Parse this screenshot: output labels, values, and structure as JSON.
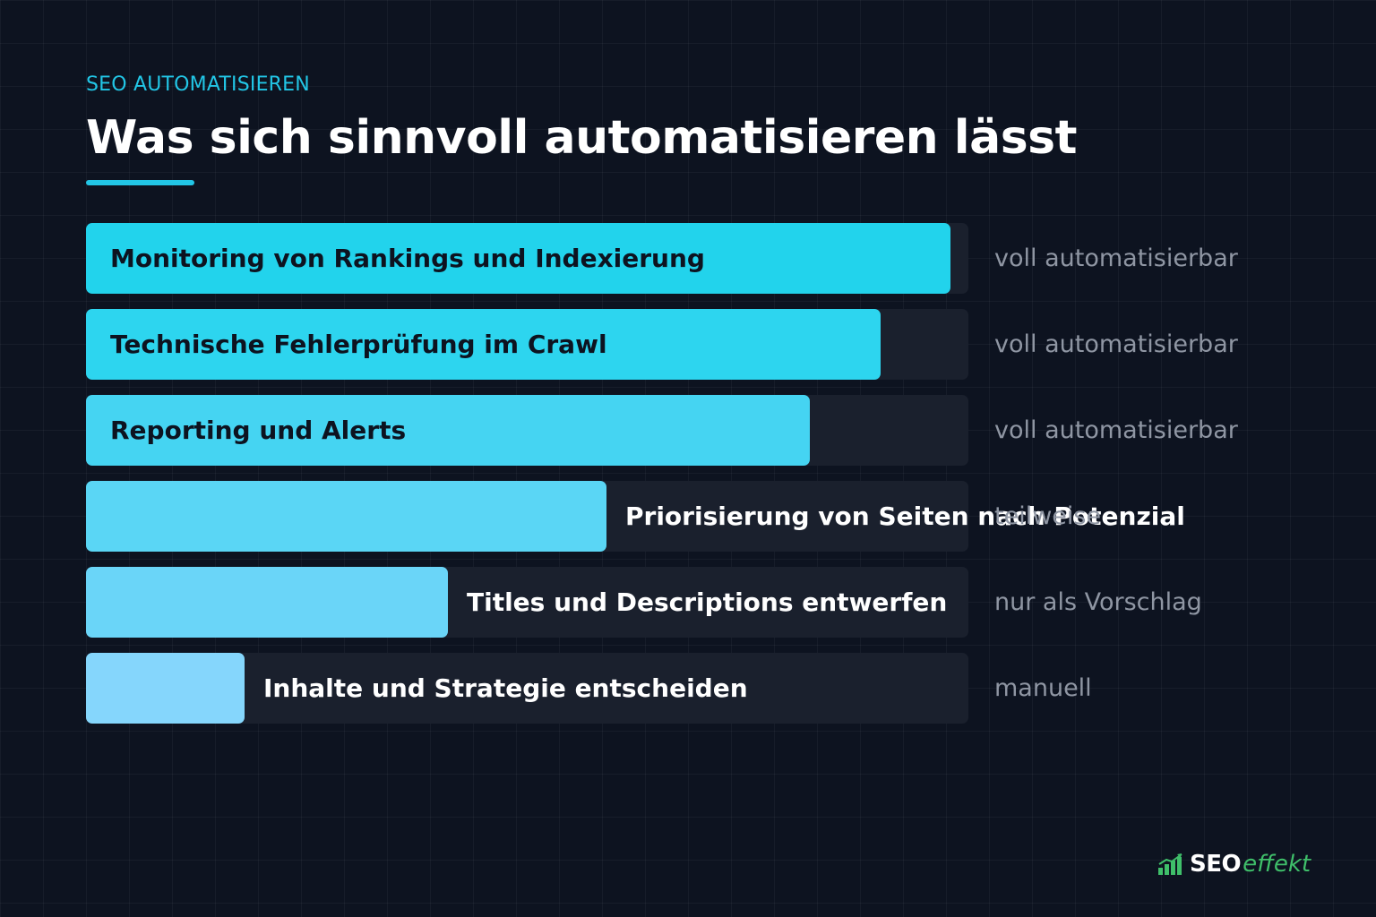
{
  "header": {
    "eyebrow": "SEO AUTOMATISIEREN",
    "title": "Was sich sinnvoll automatisieren lässt"
  },
  "chart_data": {
    "type": "bar",
    "orientation": "horizontal",
    "title": "Was sich sinnvoll automatisieren lässt",
    "xlim": [
      0,
      100
    ],
    "grid": false,
    "legend": "none",
    "categories": [
      "Monitoring von Rankings und Indexierung",
      "Technische Fehlerprüfung im Crawl",
      "Reporting und Alerts",
      "Priorisierung von Seiten nach Potenzial",
      "Titles und Descriptions entwerfen",
      "Inhalte und Strategie entscheiden"
    ],
    "values": [
      98,
      90,
      82,
      59,
      41,
      18
    ],
    "status_labels": [
      "voll automatisierbar",
      "voll automatisierbar",
      "voll automatisierbar",
      "teilweise",
      "nur als Vorschlag",
      "manuell"
    ],
    "colors": [
      "#22d3ec",
      "#2dd5ef",
      "#45d4f2",
      "#5ad6f5",
      "#6ad5f8",
      "#85d6fc"
    ],
    "track_color": "#1a202d"
  },
  "logo": {
    "part1": "SEO",
    "part2": "effekt",
    "icon": "growth-chart-icon",
    "colors": [
      "#ffffff",
      "#3fbf6a"
    ]
  }
}
